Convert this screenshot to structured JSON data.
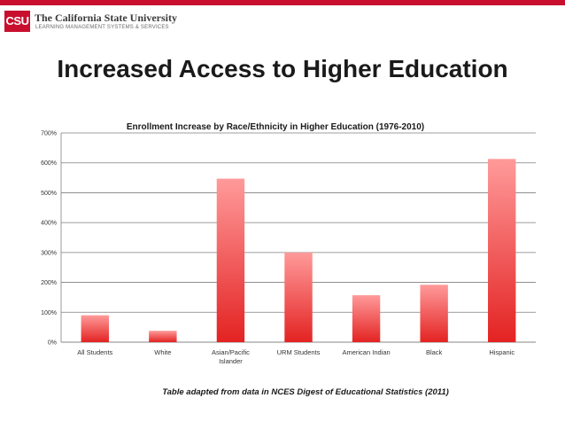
{
  "header": {
    "logo_mark": "CSU",
    "org_name": "The California State University",
    "org_subtitle": "LEARNING MANAGEMENT SYSTEMS & SERVICES"
  },
  "slide": {
    "title": "Increased Access to Higher Education",
    "caption": "Table adapted from data in NCES Digest of Educational Statistics (2011)"
  },
  "colors": {
    "accent": "#c8102e",
    "bar_top": "#ff9a9a",
    "bar_bottom": "#e32322"
  },
  "chart_data": {
    "type": "bar",
    "title": "Enrollment Increase by Race/Ethnicity in Higher Education (1976-2010)",
    "categories": [
      "All Students",
      "White",
      "Asian/Pacific Islander",
      "URM Students",
      "American Indian",
      "Black",
      "Hispanic"
    ],
    "values": [
      90,
      38,
      547,
      300,
      157,
      192,
      613
    ],
    "ylim": [
      0,
      700
    ],
    "yticks": [
      0,
      100,
      200,
      300,
      400,
      500,
      600,
      700
    ],
    "ytick_labels": [
      "0%",
      "100%",
      "200%",
      "300%",
      "400%",
      "500%",
      "600%",
      "700%"
    ],
    "xlabel": "",
    "ylabel": "",
    "grid": true,
    "legend": "none"
  }
}
